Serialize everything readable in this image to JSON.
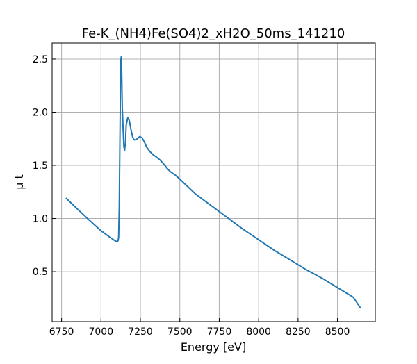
{
  "chart_data": {
    "type": "line",
    "title": "Fe-K_(NH4)Fe(SO4)2_xH2O_50ms_141210",
    "xlabel": "Energy [eV]",
    "ylabel": "μ t",
    "xlim": [
      6690,
      8740
    ],
    "ylim": [
      0.03,
      2.65
    ],
    "xticks": [
      6750,
      7000,
      7250,
      7500,
      7750,
      8000,
      8250,
      8500
    ],
    "xtick_labels": [
      "6750",
      "7000",
      "7250",
      "7500",
      "7750",
      "8000",
      "8250",
      "8500"
    ],
    "yticks": [
      0.5,
      1.0,
      1.5,
      2.0,
      2.5
    ],
    "ytick_labels": [
      "0.5",
      "1.0",
      "1.5",
      "2.0",
      "2.5"
    ],
    "grid": true,
    "line_color": "#1f77b4",
    "series": [
      {
        "x": [
          6780,
          6850,
          6925,
          7000,
          7050,
          7090,
          7103,
          7108,
          7112,
          7116,
          7120,
          7124,
          7126,
          7128,
          7130,
          7132,
          7135,
          7140,
          7145,
          7150,
          7155,
          7160,
          7170,
          7180,
          7190,
          7200,
          7210,
          7220,
          7230,
          7245,
          7260,
          7275,
          7290,
          7310,
          7330,
          7350,
          7375,
          7400,
          7420,
          7440,
          7470,
          7500,
          7550,
          7600,
          7700,
          7800,
          7900,
          8000,
          8100,
          8200,
          8300,
          8400,
          8500,
          8600,
          8645
        ],
        "y": [
          1.19,
          1.09,
          0.985,
          0.885,
          0.83,
          0.79,
          0.78,
          0.79,
          0.82,
          1.1,
          1.7,
          2.3,
          2.49,
          2.52,
          2.48,
          2.3,
          2.05,
          1.85,
          1.68,
          1.64,
          1.72,
          1.88,
          1.95,
          1.92,
          1.84,
          1.77,
          1.74,
          1.74,
          1.75,
          1.77,
          1.76,
          1.72,
          1.67,
          1.63,
          1.6,
          1.58,
          1.55,
          1.51,
          1.47,
          1.44,
          1.41,
          1.37,
          1.3,
          1.23,
          1.12,
          1.01,
          0.9,
          0.8,
          0.7,
          0.61,
          0.52,
          0.44,
          0.35,
          0.26,
          0.16
        ]
      }
    ]
  }
}
